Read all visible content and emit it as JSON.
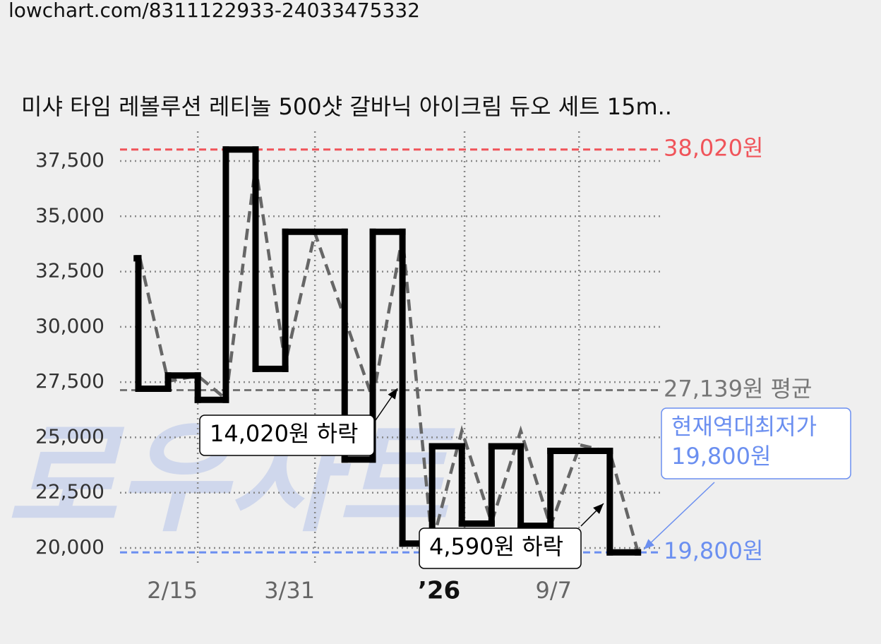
{
  "url": "lowchart.com/8311122933-24033475332",
  "chart_data": {
    "type": "step",
    "title": "미샤 타임 레볼루션 레티놀 500샷 갈바닉 아이크림 듀오 세트 15m..",
    "watermark": "로우차트",
    "xlim": [
      0,
      100
    ],
    "xticks": [
      {
        "value": 14.4,
        "label": "2/15"
      },
      {
        "value": 36.1,
        "label": "3/31"
      },
      {
        "value": 63.8,
        "label": "’26",
        "bold": true
      },
      {
        "value": 85,
        "label": "9/7"
      }
    ],
    "ylim": [
      19000,
      38500
    ],
    "yticks": [
      {
        "value": 20000,
        "label": "20,000"
      },
      {
        "value": 22500,
        "label": "22,500"
      },
      {
        "value": 25000,
        "label": "25,000"
      },
      {
        "value": 27500,
        "label": "27,500"
      },
      {
        "value": 30000,
        "label": "30,000"
      },
      {
        "value": 32500,
        "label": "32,500"
      },
      {
        "value": 35000,
        "label": "35,000"
      },
      {
        "value": 37500,
        "label": "37,500"
      }
    ],
    "grid": true,
    "series": [
      {
        "color": "#000000",
        "style": "step",
        "x": [
          3.1,
          3.4,
          8.9,
          14.4,
          19.6,
          25.1,
          30.6,
          41.6,
          46.8,
          52.3,
          57.8,
          63.3,
          68.8,
          74.2,
          79.7,
          90.7,
          95.9
        ],
        "values": [
          33100,
          27200,
          27800,
          26700,
          38020,
          28100,
          34300,
          24000,
          34300,
          20200,
          24600,
          21100,
          24600,
          21000,
          24390,
          19800,
          19800
        ]
      },
      {
        "color": "#666666",
        "style": "dashed",
        "x": [
          3.7,
          8.9,
          14.4,
          19.6,
          25.1,
          30.6,
          36.1,
          46.8,
          52.3,
          57.8,
          63.3,
          68.8,
          74.2,
          79.7,
          85.2,
          90.7,
          95.9
        ],
        "values": [
          33100,
          27540,
          27790,
          26740,
          37280,
          28340,
          34240,
          26740,
          34080,
          20190,
          25300,
          21150,
          25300,
          20990,
          24660,
          24340,
          19830
        ]
      }
    ],
    "reference_lines": [
      {
        "value": 38020,
        "label": "38,020원",
        "color": "#f0545a"
      },
      {
        "value": 27139,
        "label": "27,139원 평균",
        "color": "#777777"
      },
      {
        "value": 19800,
        "label": "19,800원",
        "color": "#6b8ff0"
      }
    ],
    "annotations": [
      {
        "lines": [
          "14,020원 하락"
        ],
        "color": "#000000"
      },
      {
        "lines": [
          "4,590원 하락"
        ],
        "color": "#000000"
      },
      {
        "lines": [
          "현재역대최저가",
          "19,800원"
        ],
        "color": "#6b8ff0"
      }
    ]
  }
}
